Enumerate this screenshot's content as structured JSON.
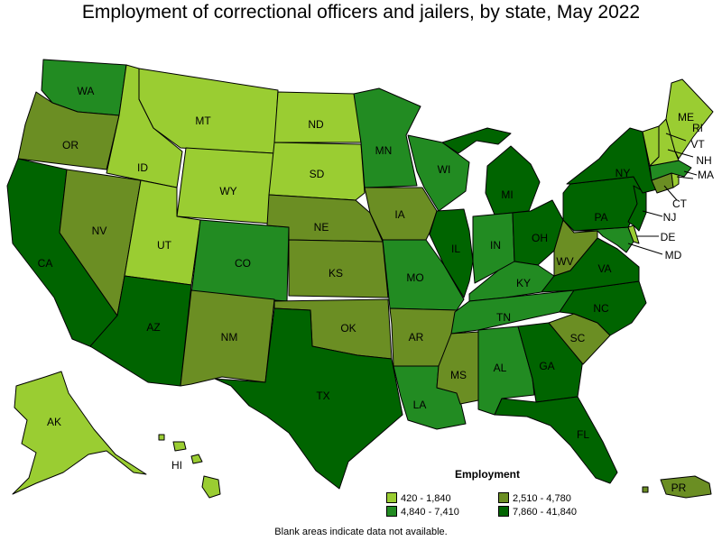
{
  "title": "Employment of correctional officers and jailers, by state, May 2022",
  "legend": {
    "title": "Employment",
    "bins": [
      {
        "label": "420 - 1,840",
        "color": "#9acd32"
      },
      {
        "label": "2,510 - 4,780",
        "color": "#6b8e23"
      },
      {
        "label": "4,840 - 7,410",
        "color": "#228b22"
      },
      {
        "label": "7,860 - 41,840",
        "color": "#006400"
      }
    ]
  },
  "note": "Blank areas indicate data not available.",
  "states": {
    "WA": {
      "label": "WA",
      "bin": 2
    },
    "OR": {
      "label": "OR",
      "bin": 1
    },
    "CA": {
      "label": "CA",
      "bin": 3
    },
    "NV": {
      "label": "NV",
      "bin": 1
    },
    "ID": {
      "label": "ID",
      "bin": 0
    },
    "MT": {
      "label": "MT",
      "bin": 0
    },
    "WY": {
      "label": "WY",
      "bin": 0
    },
    "UT": {
      "label": "UT",
      "bin": 0
    },
    "AZ": {
      "label": "AZ",
      "bin": 3
    },
    "CO": {
      "label": "CO",
      "bin": 2
    },
    "NM": {
      "label": "NM",
      "bin": 1
    },
    "ND": {
      "label": "ND",
      "bin": 0
    },
    "SD": {
      "label": "SD",
      "bin": 0
    },
    "NE": {
      "label": "NE",
      "bin": 1
    },
    "KS": {
      "label": "KS",
      "bin": 1
    },
    "OK": {
      "label": "OK",
      "bin": 1
    },
    "TX": {
      "label": "TX",
      "bin": 3
    },
    "MN": {
      "label": "MN",
      "bin": 2
    },
    "IA": {
      "label": "IA",
      "bin": 1
    },
    "MO": {
      "label": "MO",
      "bin": 2
    },
    "AR": {
      "label": "AR",
      "bin": 1
    },
    "LA": {
      "label": "LA",
      "bin": 2
    },
    "WI": {
      "label": "WI",
      "bin": 2
    },
    "IL": {
      "label": "IL",
      "bin": 3
    },
    "MI": {
      "label": "MI",
      "bin": 3
    },
    "IN": {
      "label": "IN",
      "bin": 2
    },
    "OH": {
      "label": "OH",
      "bin": 3
    },
    "KY": {
      "label": "KY",
      "bin": 2
    },
    "TN": {
      "label": "TN",
      "bin": 2
    },
    "MS": {
      "label": "MS",
      "bin": 1
    },
    "AL": {
      "label": "AL",
      "bin": 2
    },
    "GA": {
      "label": "GA",
      "bin": 3
    },
    "FL": {
      "label": "FL",
      "bin": 3
    },
    "SC": {
      "label": "SC",
      "bin": 1
    },
    "NC": {
      "label": "NC",
      "bin": 3
    },
    "VA": {
      "label": "VA",
      "bin": 3
    },
    "WV": {
      "label": "WV",
      "bin": 1
    },
    "PA": {
      "label": "PA",
      "bin": 3
    },
    "NY": {
      "label": "NY",
      "bin": 3
    },
    "NJ": {
      "label": "NJ",
      "bin": 3
    },
    "DE": {
      "label": "DE",
      "bin": 0
    },
    "MD": {
      "label": "MD",
      "bin": 2
    },
    "CT": {
      "label": "CT",
      "bin": 1
    },
    "MA": {
      "label": "MA",
      "bin": 2
    },
    "VT": {
      "label": "VT",
      "bin": 0
    },
    "NH": {
      "label": "NH",
      "bin": 0
    },
    "ME": {
      "label": "ME",
      "bin": 0
    },
    "RI": {
      "label": "RI",
      "bin": 0
    },
    "AK": {
      "label": "AK",
      "bin": 0
    },
    "HI": {
      "label": "HI",
      "bin": 0
    },
    "PR": {
      "label": "PR",
      "bin": 1
    }
  }
}
